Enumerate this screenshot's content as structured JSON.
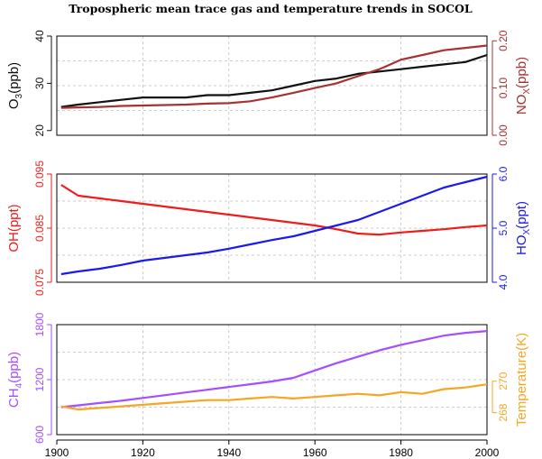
{
  "title": "Tropospheric mean trace gas and temperature trends in SOCOL",
  "colors": {
    "o3": "#111111",
    "nox": "#a83232",
    "oh": "#ef1c1c",
    "hox": "#1a1af0",
    "ch4": "#a64dff",
    "temp": "#f5a623"
  },
  "chart_data": [
    {
      "type": "line",
      "x_range": [
        1900,
        2000
      ],
      "grid": true,
      "left_axis": {
        "label": "O",
        "sub": "3",
        "suffix": "(ppb)",
        "ylim": [
          19,
          40
        ],
        "ticks": [
          "20",
          "30",
          "40"
        ],
        "tick_values": [
          20,
          30,
          40
        ]
      },
      "right_axis": {
        "label": "NO",
        "sub": "X",
        "suffix": "(ppb)",
        "ylim": [
          0,
          0.21
        ],
        "ticks": [
          "0.00",
          "0.10",
          "0.20"
        ],
        "tick_values": [
          0,
          0.1,
          0.2
        ]
      },
      "series": [
        {
          "key": "o3",
          "axis": "left",
          "x": [
            1901,
            1905,
            1910,
            1915,
            1920,
            1925,
            1930,
            1935,
            1940,
            1945,
            1950,
            1955,
            1960,
            1965,
            1970,
            1975,
            1980,
            1985,
            1990,
            1995,
            2000
          ],
          "y": [
            25,
            25.5,
            26,
            26.5,
            27,
            27,
            27,
            27.5,
            27.5,
            28,
            28.5,
            29.5,
            30.5,
            31,
            32,
            32.5,
            33,
            33.5,
            34,
            34.5,
            36
          ]
        },
        {
          "key": "nox",
          "axis": "right",
          "x": [
            1901,
            1905,
            1910,
            1915,
            1920,
            1925,
            1930,
            1935,
            1940,
            1945,
            1950,
            1955,
            1960,
            1965,
            1970,
            1975,
            1980,
            1985,
            1990,
            1995,
            2000
          ],
          "y": [
            0.058,
            0.059,
            0.06,
            0.062,
            0.063,
            0.064,
            0.065,
            0.067,
            0.068,
            0.072,
            0.08,
            0.09,
            0.1,
            0.11,
            0.125,
            0.14,
            0.16,
            0.17,
            0.18,
            0.185,
            0.19
          ]
        }
      ]
    },
    {
      "type": "line",
      "x_range": [
        1900,
        2000
      ],
      "grid": true,
      "left_axis": {
        "label": "OH(ppt)",
        "ylim": [
          0.075,
          0.095
        ],
        "ticks": [
          "0.075",
          "0.085",
          "0.095"
        ],
        "tick_values": [
          0.075,
          0.085,
          0.095
        ]
      },
      "right_axis": {
        "label": "HO",
        "sub": "X",
        "suffix": "(ppt)",
        "ylim": [
          4.0,
          6.0
        ],
        "ticks": [
          "4.0",
          "5.0",
          "6.0"
        ],
        "tick_values": [
          4.0,
          5.0,
          6.0
        ]
      },
      "series": [
        {
          "key": "oh",
          "axis": "left",
          "x": [
            1901,
            1905,
            1910,
            1915,
            1920,
            1925,
            1930,
            1935,
            1940,
            1945,
            1950,
            1955,
            1960,
            1965,
            1970,
            1975,
            1980,
            1985,
            1990,
            1995,
            2000
          ],
          "y": [
            0.093,
            0.091,
            0.0905,
            0.09,
            0.0895,
            0.089,
            0.0885,
            0.088,
            0.0875,
            0.087,
            0.0865,
            0.086,
            0.0855,
            0.0848,
            0.084,
            0.0838,
            0.0842,
            0.0845,
            0.0848,
            0.0852,
            0.0855
          ]
        },
        {
          "key": "hox",
          "axis": "right",
          "x": [
            1901,
            1905,
            1910,
            1915,
            1920,
            1925,
            1930,
            1935,
            1940,
            1945,
            1950,
            1955,
            1960,
            1965,
            1970,
            1975,
            1980,
            1985,
            1990,
            1995,
            2000
          ],
          "y": [
            4.15,
            4.2,
            4.25,
            4.32,
            4.4,
            4.45,
            4.5,
            4.55,
            4.62,
            4.7,
            4.78,
            4.85,
            4.95,
            5.05,
            5.15,
            5.3,
            5.45,
            5.6,
            5.75,
            5.85,
            5.95
          ]
        }
      ]
    },
    {
      "type": "line",
      "x_range": [
        1900,
        2000
      ],
      "grid": true,
      "x_ticks": [
        "1900",
        "1920",
        "1940",
        "1960",
        "1980",
        "2000"
      ],
      "x_tick_values": [
        1900,
        1920,
        1940,
        1960,
        1980,
        2000
      ],
      "left_axis": {
        "label": "CH",
        "sub": "4",
        "suffix": "(ppb)",
        "ylim": [
          600,
          1800
        ],
        "ticks": [
          "600",
          "1200",
          "1800"
        ],
        "tick_values": [
          600,
          1200,
          1800
        ]
      },
      "right_axis": {
        "label": "Temperature(K)",
        "ylim": [
          266.6,
          273.6
        ],
        "ticks": [
          "268",
          "270"
        ],
        "tick_values": [
          268,
          270
        ]
      },
      "series": [
        {
          "key": "ch4",
          "axis": "left",
          "x": [
            1901,
            1905,
            1910,
            1915,
            1920,
            1925,
            1930,
            1935,
            1940,
            1945,
            1950,
            1955,
            1960,
            1965,
            1970,
            1975,
            1980,
            1985,
            1990,
            1995,
            2000
          ],
          "y": [
            900,
            920,
            945,
            970,
            1000,
            1030,
            1060,
            1090,
            1120,
            1150,
            1180,
            1220,
            1300,
            1380,
            1450,
            1520,
            1580,
            1630,
            1680,
            1710,
            1730
          ]
        },
        {
          "key": "temp",
          "axis": "right",
          "x": [
            1901,
            1905,
            1910,
            1915,
            1920,
            1925,
            1930,
            1935,
            1940,
            1945,
            1950,
            1955,
            1960,
            1965,
            1970,
            1975,
            1980,
            1985,
            1990,
            1995,
            2000
          ],
          "y": [
            268.4,
            268.2,
            268.3,
            268.4,
            268.5,
            268.6,
            268.7,
            268.8,
            268.8,
            268.9,
            269.0,
            268.9,
            269.0,
            269.1,
            269.2,
            269.1,
            269.3,
            269.2,
            269.5,
            269.6,
            269.8
          ]
        }
      ]
    }
  ]
}
